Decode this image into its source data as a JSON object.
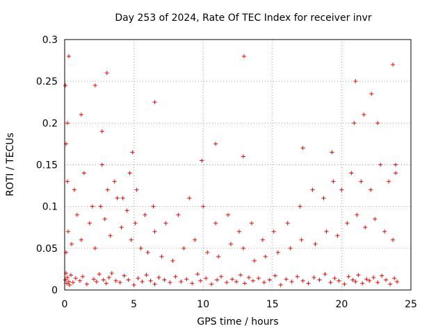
{
  "chart_data": {
    "type": "scatter",
    "title": "Day 253 of 2024, Rate Of TEC Index for receiver invr",
    "xlabel": "GPS time / hours",
    "ylabel": "ROTI / TECUs",
    "xlim": [
      0,
      25
    ],
    "ylim": [
      0,
      0.3
    ],
    "xticks": [
      "0",
      "5",
      "10",
      "15",
      "20",
      "25"
    ],
    "xtick_values": [
      0,
      5,
      10,
      15,
      20,
      25
    ],
    "yticks": [
      "0",
      "0.05",
      "0.1",
      "0.15",
      "0.2",
      "0.25",
      "0.3"
    ],
    "ytick_values": [
      0,
      0.05,
      0.1,
      0.15,
      0.2,
      0.25,
      0.3
    ],
    "grid": true,
    "marker": "+",
    "series": [
      {
        "name": "ROTI",
        "color": "#ff0000",
        "x": [
          0.05,
          0.1,
          0.15,
          0.2,
          0.3,
          0.35,
          0.45,
          0.6,
          0.8,
          1.1,
          1.3,
          1.6,
          2.1,
          2.3,
          2.5,
          2.8,
          3.0,
          3.2,
          3.4,
          3.7,
          4.0,
          4.3,
          4.6,
          5.0,
          5.3,
          5.6,
          5.9,
          6.2,
          6.5,
          6.8,
          7.2,
          7.6,
          8.0,
          8.4,
          8.8,
          9.2,
          9.6,
          9.8,
          10.2,
          10.6,
          11.0,
          11.3,
          11.7,
          12.1,
          12.4,
          12.7,
          13.0,
          13.3,
          13.6,
          14.0,
          14.4,
          14.8,
          15.2,
          15.6,
          16.0,
          16.4,
          16.8,
          17.2,
          17.6,
          18.0,
          18.4,
          18.8,
          19.2,
          19.5,
          19.8,
          20.2,
          20.5,
          20.8,
          21.0,
          21.2,
          21.5,
          21.8,
          22.0,
          22.3,
          22.6,
          22.9,
          23.2,
          23.5,
          23.8,
          24.0,
          0.1,
          0.25,
          0.5,
          0.9,
          1.2,
          1.8,
          2.2,
          2.6,
          2.9,
          3.3,
          3.8,
          4.1,
          4.5,
          4.8,
          5.1,
          5.5,
          6.0,
          6.5,
          7.0,
          7.8,
          8.6,
          9.4,
          10.3,
          11.1,
          12.0,
          12.9,
          13.7,
          14.5,
          15.4,
          16.3,
          17.1,
          18.1,
          18.9,
          19.7,
          20.4,
          21.1,
          21.7,
          22.4,
          23.1,
          23.7,
          0.2,
          0.7,
          1.4,
          2.0,
          2.7,
          3.1,
          3.6,
          4.2,
          4.7,
          5.2,
          5.8,
          6.4,
          7.3,
          8.2,
          9.0,
          10.0,
          10.9,
          11.8,
          12.6,
          13.5,
          14.3,
          15.1,
          16.1,
          17.0,
          17.9,
          18.7,
          19.4,
          20.0,
          20.7,
          21.4,
          22.1,
          22.8,
          23.4,
          23.9,
          0.05,
          0.3,
          0.2,
          2.2,
          3.05,
          6.5,
          12.95,
          21.0,
          22.15,
          23.7,
          0.1,
          1.2,
          2.7,
          4.9,
          9.9,
          10.9,
          12.9,
          17.2,
          19.3,
          20.9,
          21.6,
          22.6,
          23.9
        ],
        "y": [
          0.012,
          0.02,
          0.008,
          0.015,
          0.01,
          0.006,
          0.018,
          0.009,
          0.014,
          0.011,
          0.016,
          0.007,
          0.013,
          0.01,
          0.019,
          0.012,
          0.008,
          0.015,
          0.02,
          0.011,
          0.009,
          0.017,
          0.012,
          0.006,
          0.014,
          0.01,
          0.018,
          0.011,
          0.007,
          0.015,
          0.012,
          0.009,
          0.016,
          0.01,
          0.013,
          0.008,
          0.019,
          0.011,
          0.014,
          0.007,
          0.012,
          0.016,
          0.009,
          0.013,
          0.01,
          0.018,
          0.008,
          0.015,
          0.011,
          0.014,
          0.009,
          0.012,
          0.017,
          0.006,
          0.013,
          0.01,
          0.016,
          0.011,
          0.008,
          0.015,
          0.012,
          0.019,
          0.009,
          0.014,
          0.011,
          0.007,
          0.016,
          0.012,
          0.01,
          0.018,
          0.008,
          0.013,
          0.011,
          0.015,
          0.009,
          0.017,
          0.012,
          0.007,
          0.014,
          0.01,
          0.045,
          0.07,
          0.055,
          0.09,
          0.06,
          0.08,
          0.05,
          0.1,
          0.085,
          0.065,
          0.11,
          0.075,
          0.095,
          0.06,
          0.08,
          0.05,
          0.045,
          0.07,
          0.04,
          0.035,
          0.05,
          0.06,
          0.045,
          0.04,
          0.055,
          0.05,
          0.035,
          0.04,
          0.045,
          0.05,
          0.06,
          0.055,
          0.07,
          0.065,
          0.08,
          0.09,
          0.075,
          0.085,
          0.07,
          0.06,
          0.13,
          0.12,
          0.14,
          0.1,
          0.15,
          0.12,
          0.13,
          0.11,
          0.14,
          0.12,
          0.09,
          0.1,
          0.08,
          0.09,
          0.11,
          0.1,
          0.08,
          0.09,
          0.07,
          0.08,
          0.06,
          0.07,
          0.08,
          0.1,
          0.12,
          0.11,
          0.13,
          0.12,
          0.14,
          0.13,
          0.12,
          0.15,
          0.13,
          0.14,
          0.245,
          0.28,
          0.2,
          0.245,
          0.26,
          0.225,
          0.28,
          0.25,
          0.235,
          0.27,
          0.175,
          0.21,
          0.19,
          0.165,
          0.155,
          0.175,
          0.16,
          0.17,
          0.165,
          0.2,
          0.21,
          0.2,
          0.15
        ]
      }
    ]
  }
}
